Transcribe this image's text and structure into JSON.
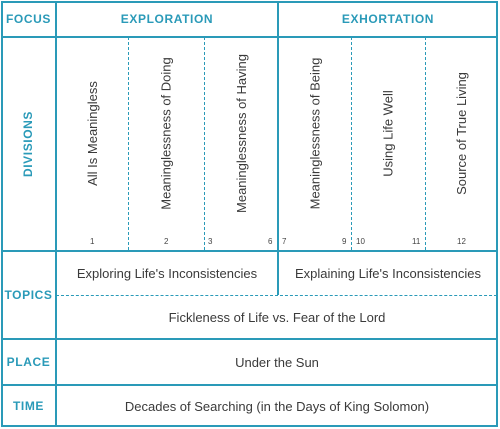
{
  "labels": {
    "focus": "FOCUS",
    "divisions": "DIVISIONS",
    "topics": "TOPICS",
    "place": "PLACE",
    "time": "TIME"
  },
  "focus": [
    "EXPLORATION",
    "EXHORTATION"
  ],
  "divisions": [
    {
      "title": "All Is Meaningless",
      "num_start": "1",
      "num_end": ""
    },
    {
      "title": "Meaninglessness of Doing",
      "num_start": "",
      "num_end": "2"
    },
    {
      "title": "Meaninglessness of Having",
      "num_start": "3",
      "num_end": "6"
    },
    {
      "title": "Meaninglessness of Being",
      "num_start": "7",
      "num_end": "9"
    },
    {
      "title": "Using Life Well",
      "num_start": "10",
      "num_end": "11"
    },
    {
      "title": "Source of True Living",
      "num_start": "",
      "num_end": "12"
    }
  ],
  "topics": {
    "left": "Exploring Life's Inconsistencies",
    "right": "Explaining Life's Inconsistencies",
    "full": "Fickleness of Life vs. Fear of the Lord"
  },
  "place": "Under the Sun",
  "time": "Decades of Searching (in the Days of King Solomon)",
  "colors": {
    "accent": "#2a9ab8",
    "text": "#3a3a3a"
  }
}
